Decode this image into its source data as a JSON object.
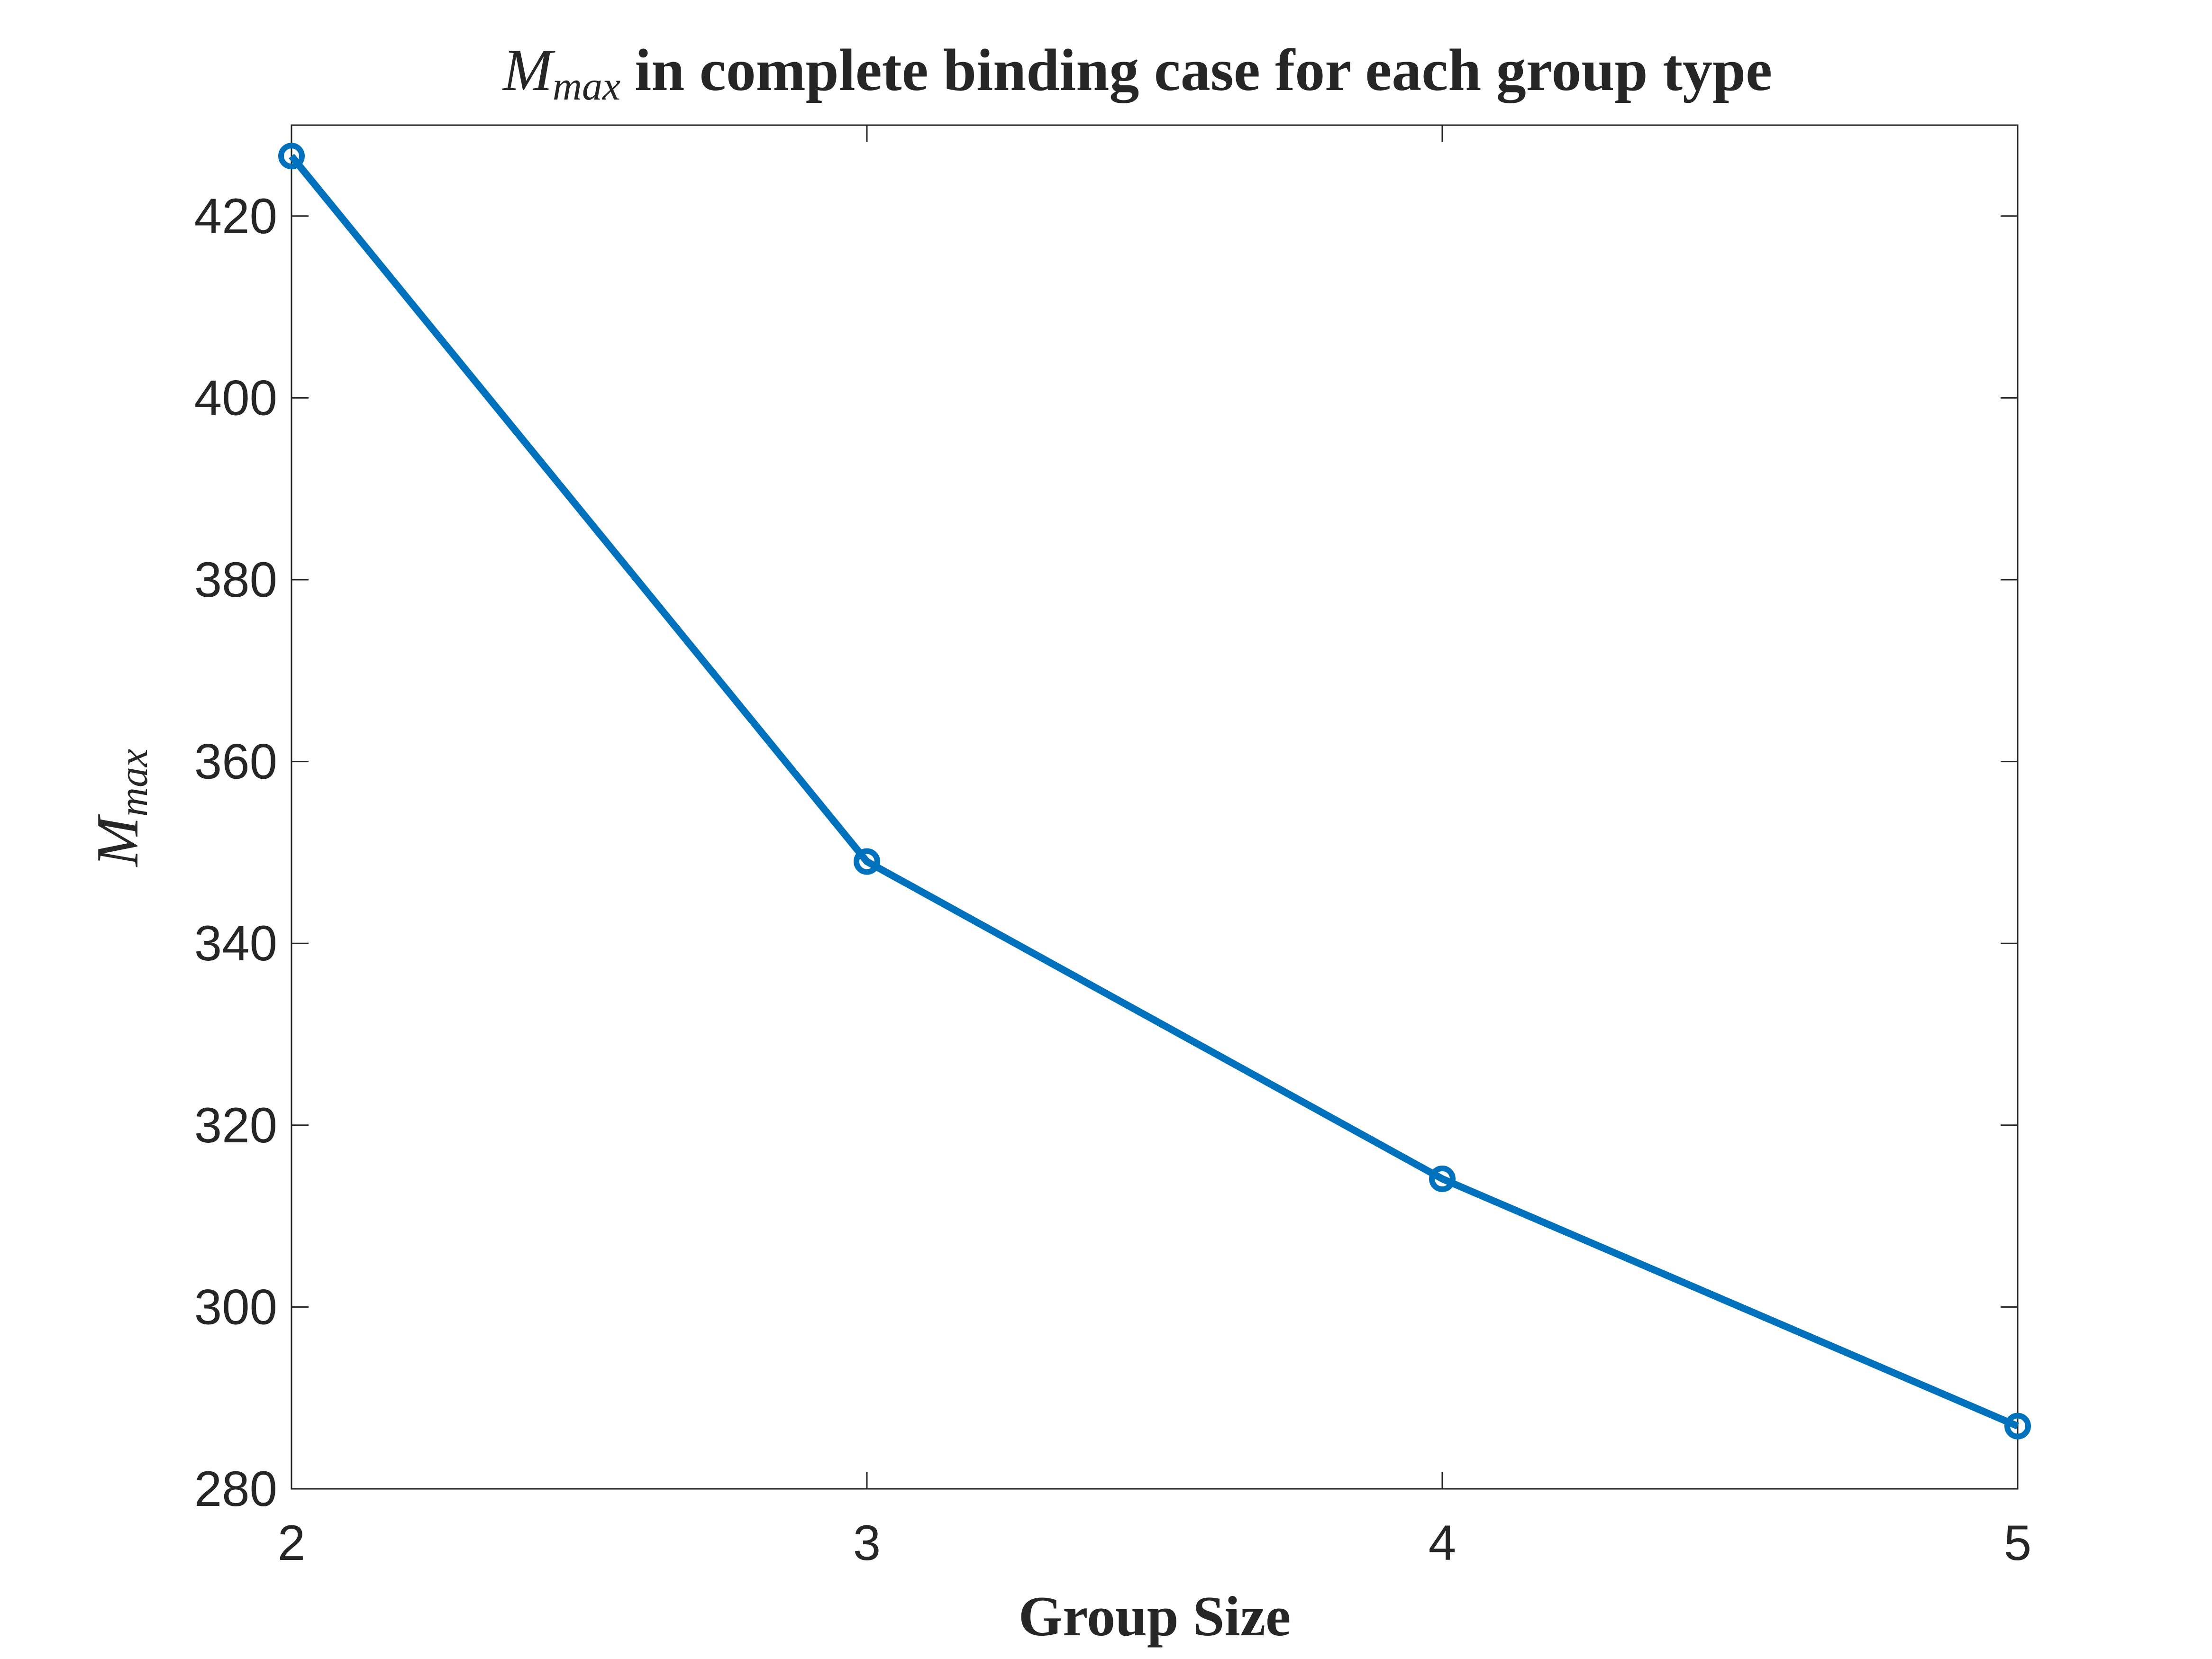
{
  "chart_data": {
    "type": "line",
    "title": {
      "symbol": "M",
      "subscript": "max",
      "text": "in complete binding case for each group type"
    },
    "x_label": "Group Size",
    "y_label": {
      "symbol": "M",
      "subscript": "max"
    },
    "x": [
      2,
      3,
      4,
      5
    ],
    "series": [
      {
        "color": "#0072bd",
        "values": [
          426.6,
          349.0,
          314.1,
          286.9
        ]
      }
    ],
    "xlim": [
      2,
      5
    ],
    "xticks": [
      2,
      3,
      4,
      5
    ],
    "ylim": [
      280,
      430
    ],
    "yticks": [
      280,
      300,
      320,
      340,
      360,
      380,
      400,
      420
    ],
    "grid": false
  }
}
